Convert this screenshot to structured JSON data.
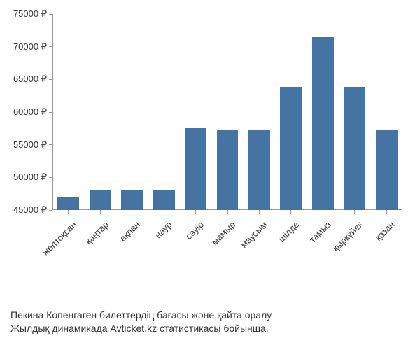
{
  "chart": {
    "type": "bar",
    "categories": [
      "желтоқсан",
      "қаңтар",
      "ақпан",
      "наур",
      "сәуір",
      "мамыр",
      "маусым",
      "шілде",
      "тамыз",
      "қыркүйек",
      "қазан"
    ],
    "values": [
      47000,
      48000,
      48000,
      48000,
      57500,
      57300,
      57300,
      63800,
      71500,
      63800,
      57300
    ],
    "bar_color": "#4574a2",
    "background_color": "#ffffff",
    "ylim": [
      45000,
      75000
    ],
    "ytick_step": 5000,
    "ytick_labels": [
      "45000 ₽",
      "50000 ₽",
      "55000 ₽",
      "60000 ₽",
      "65000 ₽",
      "70000 ₽",
      "75000 ₽"
    ],
    "label_fontsize": 13,
    "bar_width_ratio": 0.68,
    "xlabel_rotation": -45,
    "axis_color": "#999999",
    "text_color": "#333333"
  },
  "caption": {
    "line1": "Пекина Копенгаген билеттердің бағасы және қайта оралу",
    "line2": "Жылдық динамикада Avticket.kz статистикасы бойынша.",
    "fontsize": 14
  }
}
